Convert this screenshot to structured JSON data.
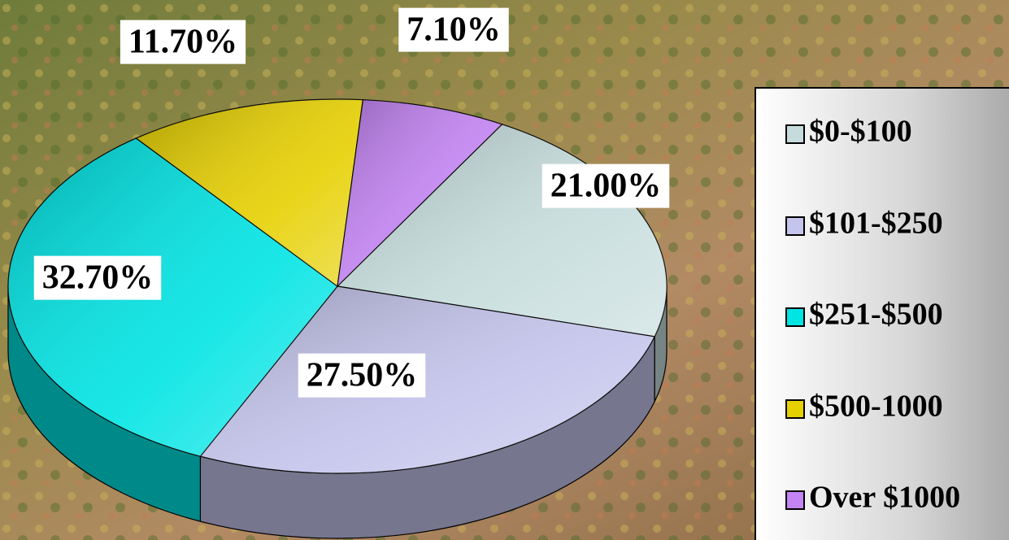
{
  "chart_data": {
    "type": "pie",
    "categories": [
      "$0-$100",
      "$101-$250",
      "$251-$500",
      "$500-1000",
      "Over $1000"
    ],
    "values": [
      21,
      27.5,
      32.7,
      11.7,
      7.1
    ],
    "value_labels": [
      "21.00%",
      "27.50%",
      "32.70%",
      "11.70%",
      "7.10%"
    ],
    "colors": [
      "#c6dcdc",
      "#c4c4ec",
      "#00e4e4",
      "#e6d000",
      "#c484f4"
    ],
    "legend": "right"
  }
}
